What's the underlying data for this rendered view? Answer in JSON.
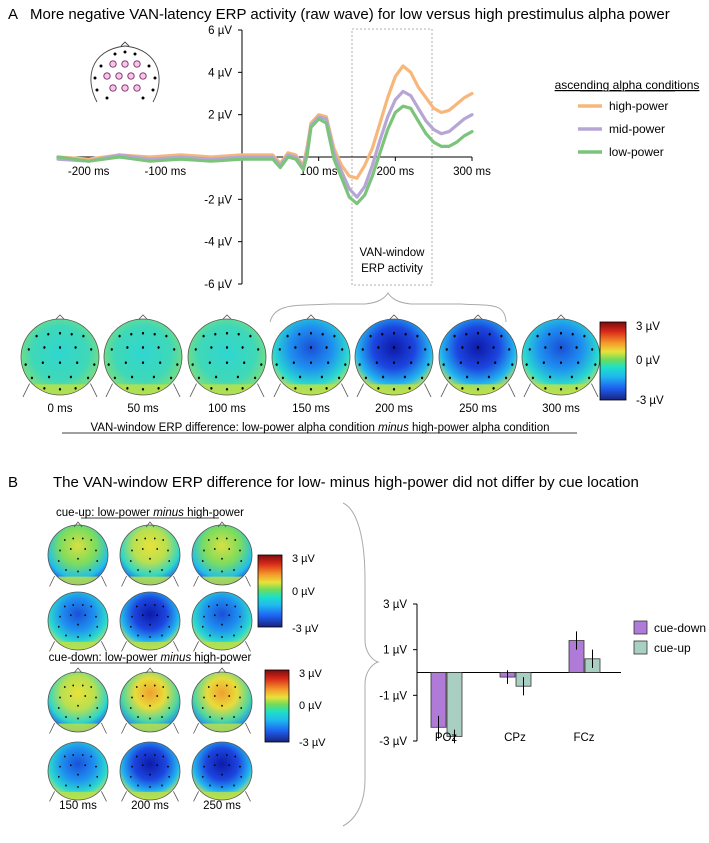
{
  "panelA": {
    "letter": "A",
    "title": "More negative VAN-latency ERP activity (raw wave) for low versus high prestimulus alpha power",
    "chart_data": {
      "type": "line",
      "xlabel": "",
      "ylabel": "",
      "xlim": [
        -240,
        300
      ],
      "ylim": [
        -6,
        6
      ],
      "x_ticks": [
        -200,
        -100,
        100,
        200,
        300
      ],
      "x_tick_labels": [
        "-200 ms",
        "-100 ms",
        "100 ms",
        "200 ms",
        "300 ms"
      ],
      "y_ticks": [
        6,
        4,
        2,
        -2,
        -4,
        -6
      ],
      "y_tick_labels": [
        "6  µV",
        "4  µV",
        "2  µV",
        "-2  µV",
        "-4  µV",
        "-6  µV"
      ],
      "legend_title": "ascending alpha conditions",
      "legend_position": "right",
      "x": [
        -240,
        -200,
        -160,
        -120,
        -80,
        -40,
        0,
        40,
        50,
        60,
        70,
        80,
        85,
        90,
        100,
        110,
        120,
        130,
        140,
        150,
        160,
        170,
        180,
        190,
        200,
        210,
        220,
        230,
        240,
        250,
        260,
        270,
        280,
        290,
        300
      ],
      "series": [
        {
          "name": "high-power",
          "color": "#f7b77a",
          "values": [
            0.0,
            -0.1,
            0.1,
            0.0,
            0.1,
            0.0,
            0.1,
            0.1,
            -0.3,
            0.2,
            0.1,
            -0.4,
            0.5,
            1.6,
            2.0,
            1.9,
            0.4,
            -0.4,
            -0.9,
            -1.0,
            -0.4,
            0.4,
            1.6,
            2.8,
            3.8,
            4.3,
            4.0,
            3.3,
            2.8,
            2.3,
            2.1,
            2.2,
            2.5,
            2.8,
            3.0
          ]
        },
        {
          "name": "mid-power",
          "color": "#b6a6d6",
          "values": [
            -0.1,
            -0.2,
            0.1,
            -0.1,
            0.0,
            -0.1,
            0.0,
            0.0,
            -0.4,
            0.1,
            0.0,
            -0.5,
            0.3,
            1.5,
            1.9,
            1.8,
            0.2,
            -0.7,
            -1.5,
            -1.9,
            -1.4,
            -0.4,
            0.8,
            1.9,
            2.7,
            3.1,
            2.9,
            2.3,
            1.7,
            1.3,
            1.1,
            1.2,
            1.5,
            1.8,
            2.0
          ]
        },
        {
          "name": "low-power",
          "color": "#7cc47c",
          "values": [
            0.0,
            -0.2,
            0.0,
            -0.2,
            -0.1,
            -0.2,
            -0.1,
            -0.1,
            -0.5,
            0.0,
            -0.1,
            -0.6,
            0.1,
            1.4,
            1.8,
            1.6,
            -0.1,
            -1.0,
            -1.9,
            -2.2,
            -1.8,
            -0.9,
            0.2,
            1.3,
            2.1,
            2.4,
            2.3,
            1.7,
            1.1,
            0.7,
            0.5,
            0.5,
            0.7,
            1.0,
            1.2
          ]
        }
      ]
    },
    "window_label_line1": "VAN-window",
    "window_label_line2": "ERP activity",
    "topo_times": [
      "0 ms",
      "50 ms",
      "100 ms",
      "150 ms",
      "200 ms",
      "250 ms",
      "300 ms"
    ],
    "colorbar_labels": [
      "3 µV",
      "0 µV",
      "-3 µV"
    ],
    "diff_caption_prefix": "VAN-window ERP difference: low-power alpha condition ",
    "diff_caption_minus": "minus",
    "diff_caption_suffix": " high-power alpha condition"
  },
  "panelB": {
    "letter": "B",
    "title": "The VAN-window ERP difference for low- minus high-power did not differ by cue location",
    "cue_up_prefix": "cue-up: low-power ",
    "cue_up_minus": "minus",
    "cue_up_suffix": " high-power",
    "cue_down_prefix": "cue-down: low-power ",
    "cue_down_minus": "minus",
    "cue_down_suffix": " high-power",
    "topo_times": [
      "150 ms",
      "200 ms",
      "250 ms"
    ],
    "colorbar_labels": [
      "3 µV",
      "0 µV",
      "-3 µV"
    ],
    "chart_data": {
      "type": "bar",
      "categories": [
        "POz",
        "CPz",
        "FCz"
      ],
      "ylim": [
        -3,
        3
      ],
      "y_ticks": [
        3,
        1,
        -1,
        -3
      ],
      "y_tick_labels": [
        "3 µV",
        "1 µV",
        "-1 µV",
        "-3 µV"
      ],
      "legend_position": "right",
      "series": [
        {
          "name": "cue-down",
          "color": "#b07ad8",
          "values": [
            -2.4,
            -0.2,
            1.4
          ],
          "errors": [
            0.5,
            0.3,
            0.4
          ]
        },
        {
          "name": "cue-up",
          "color": "#a9cfc2",
          "values": [
            -2.8,
            -0.6,
            0.6
          ],
          "errors": [
            0.3,
            0.4,
            0.4
          ]
        }
      ]
    }
  },
  "colors": {
    "text": "#000000",
    "window_box": "#aaaaaa",
    "colormap": [
      "#1a237e",
      "#1e5ff0",
      "#1fb8f0",
      "#1fe0c6",
      "#6fdc5a",
      "#e8e23a",
      "#f59a2a",
      "#d8281a",
      "#7a0d0d"
    ]
  }
}
